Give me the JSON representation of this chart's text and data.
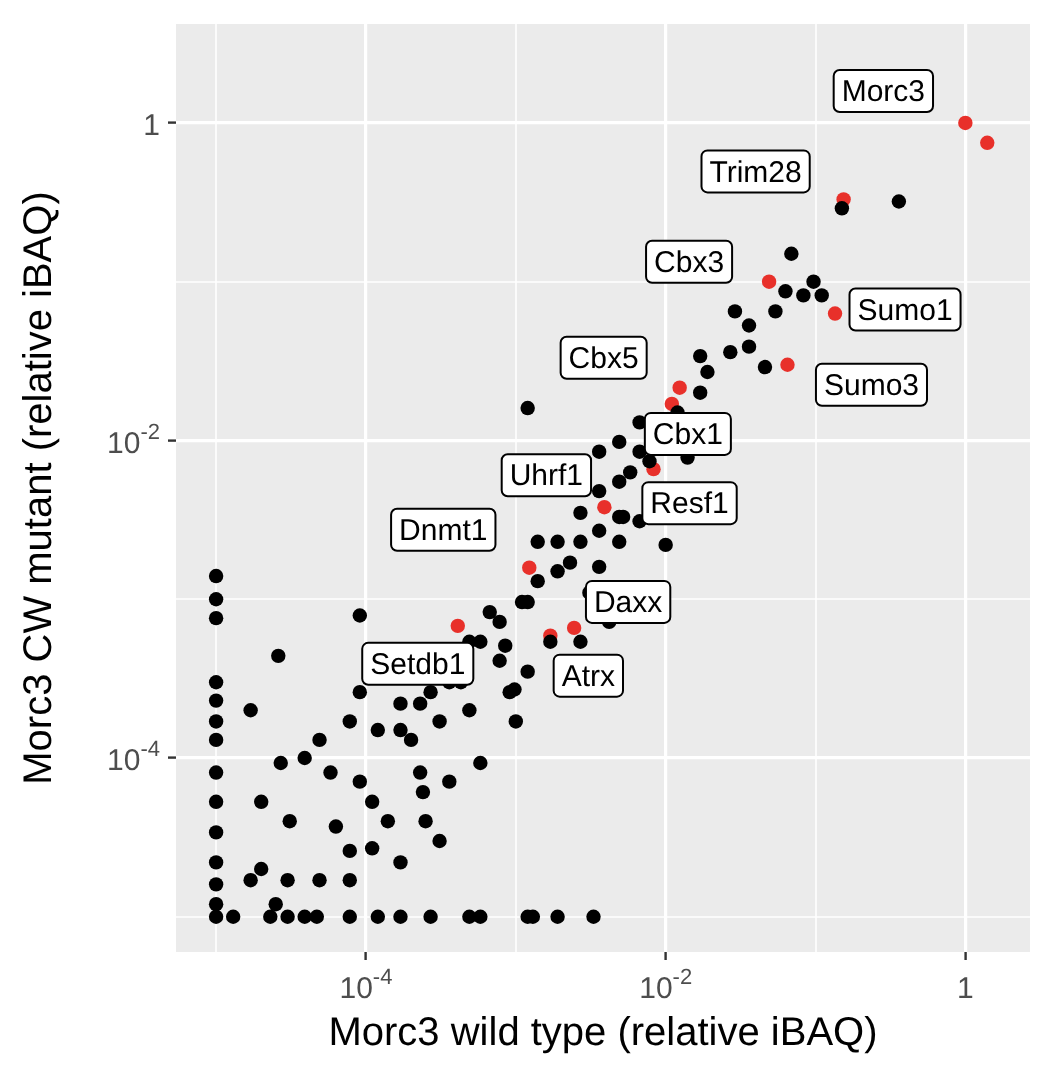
{
  "chart_data": {
    "type": "scatter",
    "xlabel": "Morc3 wild type (relative iBAQ)",
    "ylabel": "Morc3 CW mutant (relative iBAQ)",
    "log": "xy",
    "grid": true,
    "marker": "circle",
    "xlim": [
      5.4e-06,
      2.7
    ],
    "ylim": [
      6e-06,
      4.2
    ],
    "xticks": [
      {
        "value": 1e-05,
        "label": null
      },
      {
        "value": 0.0001,
        "label": "10$^{-4}$"
      },
      {
        "value": 0.001,
        "label": null
      },
      {
        "value": 0.01,
        "label": "10$^{-2}$"
      },
      {
        "value": 0.1,
        "label": null
      },
      1
    ],
    "yticks": [
      {
        "value": 1e-05,
        "label": null
      },
      {
        "value": 0.0001,
        "label": "10$^{-4}$"
      },
      {
        "value": 0.001,
        "label": null
      },
      {
        "value": 0.01,
        "label": "10$^{-2}$"
      },
      {
        "value": 0.1,
        "label": null
      },
      1
    ],
    "series": [
      {
        "color": "#000000",
        "x": [
          1e-05,
          1.3e-05,
          2.3e-05,
          3e-05,
          3.9e-05,
          4.7e-05,
          7.8e-05,
          0.00012,
          0.00017,
          0.00027,
          0.00049,
          0.00058,
          0.0012,
          0.0013,
          0.0019,
          0.0033,
          1e-05,
          1e-05,
          1e-05,
          1e-05,
          1e-05,
          1e-05,
          1e-05,
          1e-05,
          1e-05,
          1e-05,
          1e-05,
          1e-05,
          1e-05,
          2.7e-05,
          3.9e-05,
          5.8e-05,
          9.1e-05,
          0.00023,
          3.1e-05,
          6.3e-05,
          0.00017,
          2e-05,
          1.7e-05,
          2.5e-05,
          4.9e-05,
          7.8e-05,
          0.00014,
          0.00031,
          0.00011,
          0.00036,
          0.00058,
          0.00017,
          0.00027,
          0.00043,
          0.00078,
          0.0011,
          0.0014,
          0.0019,
          0.0027,
          0.0036,
          0.0049,
          0.0067,
          0.00078,
          0.00058,
          0.00031,
          0.0002,
          0.00012,
          7.8e-05,
          4.9e-05,
          0.00091,
          0.0012,
          0.0017,
          0.0027,
          0.0042,
          0.001,
          0.00049,
          0.00024,
          9.1e-05,
          0.0023,
          0.0031,
          0.0049,
          0.0067,
          0.014,
          0.012,
          0.017,
          0.019,
          0.027,
          0.029,
          0.036,
          0.036,
          0.046,
          0.017,
          0.054,
          0.063,
          0.083,
          0.097,
          0.11,
          0.069,
          0.36,
          0.15,
          0.0012,
          0.0052,
          0.01,
          0.00098,
          0.00085,
          0.00025,
          0.00011,
          7.8e-05,
          2e-05,
          3e-05,
          1.7e-05,
          2.6e-05,
          9.1e-05,
          0.0036,
          0.0049,
          0.0014,
          0.0027,
          0.0036,
          0.0019,
          0.0012,
          0.00067,
          0.00049,
          0.00036,
          0.00023,
          0.00017,
          0.0058,
          0.0078,
          0.0036,
          0.0067,
          0.0049
        ],
        "values": [
          1e-05,
          1e-05,
          1e-05,
          1e-05,
          1e-05,
          1e-05,
          1e-05,
          1e-05,
          1e-05,
          1e-05,
          1e-05,
          1e-05,
          1e-05,
          1e-05,
          1e-05,
          1e-05,
          0.0014,
          0.001,
          0.00076,
          0.0003,
          0.00023,
          0.00017,
          0.00013,
          8.1e-05,
          5.3e-05,
          3.4e-05,
          2.2e-05,
          1.6e-05,
          1.2e-05,
          9.3e-05,
          0.0001,
          8.1e-05,
          7.1e-05,
          8.1e-05,
          4e-05,
          3.7e-05,
          2.2e-05,
          5.3e-05,
          1.7e-05,
          1.2e-05,
          1.7e-05,
          2.6e-05,
          4e-05,
          3e-05,
          5.3e-05,
          7.1e-05,
          9.3e-05,
          0.00022,
          0.00026,
          0.0003,
          0.00041,
          0.00096,
          0.0013,
          0.0023,
          0.0035,
          0.0048,
          0.0055,
          0.0085,
          0.00072,
          0.00054,
          0.00017,
          0.00013,
          0.00015,
          0.00017,
          0.00013,
          0.00026,
          0.00035,
          0.00054,
          0.00054,
          0.00072,
          0.00017,
          0.0002,
          6.1e-05,
          0.00026,
          0.0017,
          0.0011,
          0.0023,
          0.0031,
          0.0078,
          0.015,
          0.02,
          0.027,
          0.036,
          0.065,
          0.053,
          0.039,
          0.029,
          0.034,
          0.065,
          0.087,
          0.082,
          0.1,
          0.082,
          0.15,
          0.32,
          0.29,
          0.016,
          0.0033,
          0.0022,
          0.00027,
          0.00051,
          4e-05,
          2.7e-05,
          1.7e-05,
          2e-05,
          1.7e-05,
          0.0002,
          0.00044,
          0.00079,
          0.0016,
          0.0033,
          0.0023,
          0.0023,
          0.0027,
          0.0015,
          0.00096,
          0.00083,
          0.00054,
          0.0003,
          0.00022,
          0.00015,
          0.0063,
          0.0074,
          0.0085,
          0.013,
          0.0098
        ]
      },
      {
        "color": "#e8302a",
        "x": [
          1,
          1.4,
          0.154,
          0.049,
          0.135,
          0.065,
          0.0124,
          0.011,
          0.0083,
          0.0039,
          0.00123,
          0.00245,
          0.0017,
          0.00041
        ],
        "values": [
          1,
          0.75,
          0.33,
          0.1,
          0.063,
          0.03,
          0.0215,
          0.017,
          0.0066,
          0.0038,
          0.00158,
          0.00066,
          0.00059,
          0.00068
        ]
      }
    ],
    "annotations": [
      {
        "text": "Morc3",
        "x": 1,
        "y": 1
      },
      {
        "text": "Trim28",
        "x": 0.154,
        "y": 0.33
      },
      {
        "text": "Cbx3",
        "x": 0.049,
        "y": 0.1
      },
      {
        "text": "Sumo1",
        "x": 0.135,
        "y": 0.063
      },
      {
        "text": "Sumo3",
        "x": 0.065,
        "y": 0.03
      },
      {
        "text": "Cbx5",
        "x": 0.0124,
        "y": 0.0215
      },
      {
        "text": "Cbx1",
        "x": 0.011,
        "y": 0.017
      },
      {
        "text": "Resf1",
        "x": 0.0083,
        "y": 0.0066
      },
      {
        "text": "Uhrf1",
        "x": 0.0039,
        "y": 0.0038
      },
      {
        "text": "Dnmt1",
        "x": 0.00123,
        "y": 0.00158
      },
      {
        "text": "Daxx",
        "x": 0.00245,
        "y": 0.00066
      },
      {
        "text": "Atrx",
        "x": 0.0017,
        "y": 0.00059
      },
      {
        "text": "Setdb1",
        "x": 0.00041,
        "y": 0.00068
      }
    ]
  }
}
